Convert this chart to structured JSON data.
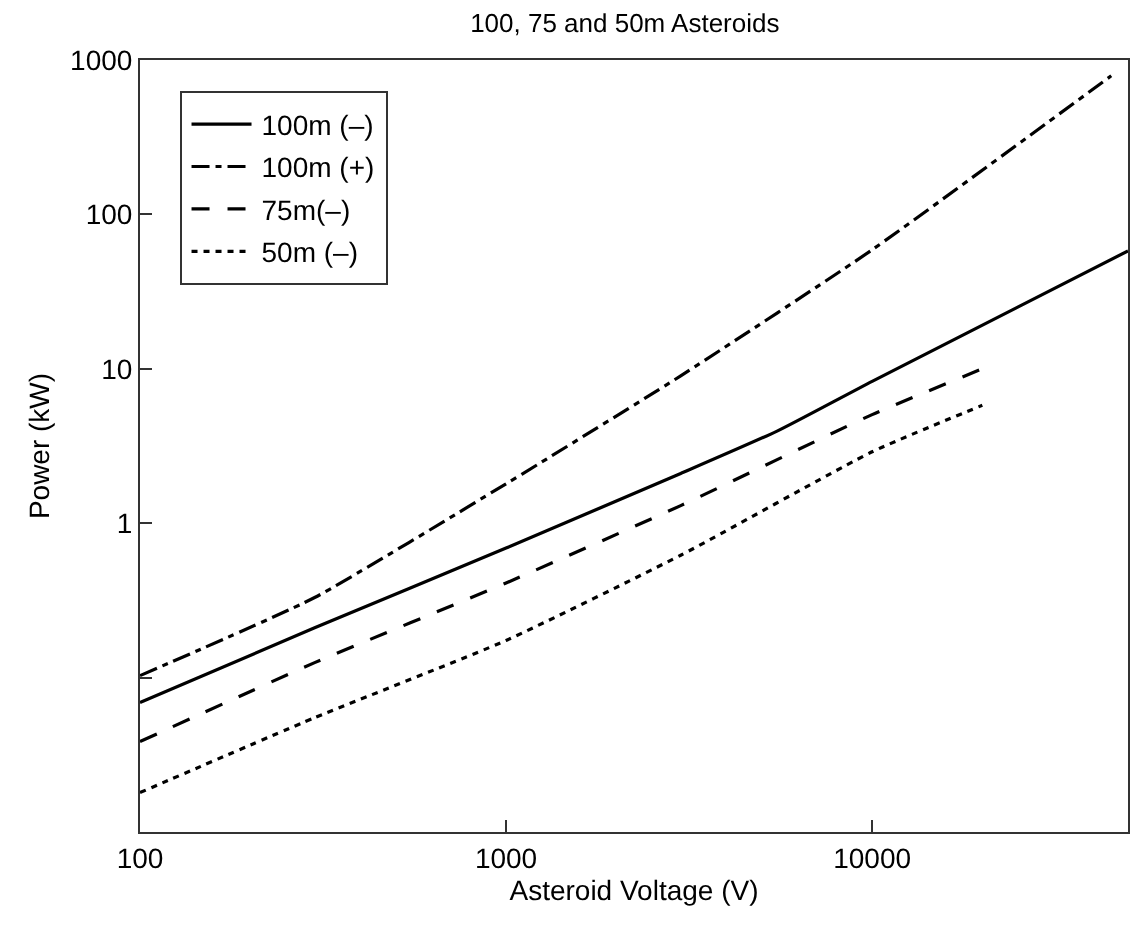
{
  "chart_data": {
    "type": "line",
    "title": "100, 75 and 50m Asteroids",
    "xlabel": "Asteroid Voltage (V)",
    "ylabel": "Power (kW)",
    "log": "xy",
    "legend": "top left",
    "marker": "none",
    "xlim": [
      100,
      50000
    ],
    "ylim": [
      0.01,
      1000
    ],
    "xticks": [
      100,
      1000,
      10000
    ],
    "yticks": [
      {
        "value": 0.1,
        "label": null
      },
      1,
      10,
      100,
      1000
    ],
    "series": [
      {
        "name": "100m (–)",
        "color": "#000000",
        "line_style": "solid",
        "x": [
          100,
          300,
          1000,
          3000,
          5500,
          10000,
          50000
        ],
        "values": [
          0.069,
          0.21,
          0.69,
          2.1,
          3.95,
          8.3,
          58
        ]
      },
      {
        "name": "100m (+)",
        "color": "#000000",
        "line_style": "dashdot",
        "x": [
          100,
          300,
          1000,
          1220,
          3000,
          10000,
          45000
        ],
        "values": [
          0.103,
          0.33,
          1.8,
          2.4,
          9,
          59,
          790
        ]
      },
      {
        "name": "75m(–)",
        "color": "#000000",
        "line_style": "dashed",
        "x": [
          100,
          300,
          1000,
          3000,
          10000,
          20000
        ],
        "values": [
          0.0385,
          0.125,
          0.41,
          1.3,
          5.05,
          10
        ]
      },
      {
        "name": "50m (–)",
        "color": "#000000",
        "line_style": "dotted",
        "x": [
          100,
          300,
          1000,
          3000,
          10000,
          20000
        ],
        "values": [
          0.018,
          0.055,
          0.174,
          0.62,
          2.9,
          5.8
        ]
      }
    ]
  }
}
